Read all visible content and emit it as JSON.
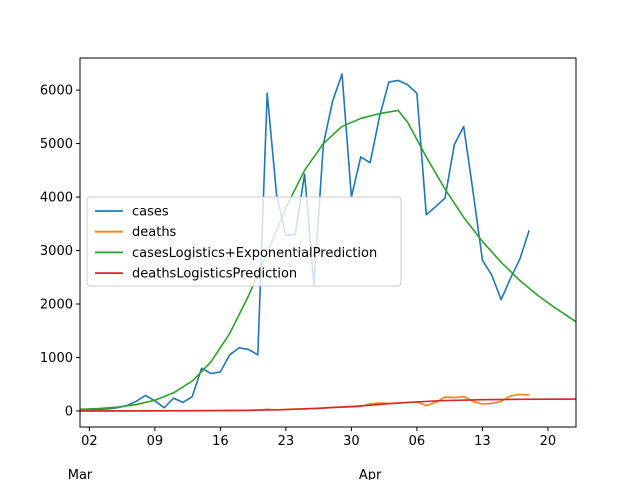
{
  "chart_data": {
    "type": "line",
    "x_axis": {
      "type": "date",
      "range": [
        "2020-03-01",
        "2020-04-23"
      ],
      "tick_labels": [
        {
          "date": "2020-03-02",
          "label": "02"
        },
        {
          "date": "2020-03-09",
          "label": "09"
        },
        {
          "date": "2020-03-16",
          "label": "16"
        },
        {
          "date": "2020-03-23",
          "label": "23"
        },
        {
          "date": "2020-03-30",
          "label": "30"
        },
        {
          "date": "2020-04-06",
          "label": "06"
        },
        {
          "date": "2020-04-13",
          "label": "13"
        },
        {
          "date": "2020-04-20",
          "label": "20"
        }
      ],
      "month_labels": [
        {
          "date": "2020-03-01",
          "label": "Mar"
        },
        {
          "date": "2020-04-01",
          "label": "Apr"
        }
      ]
    },
    "y_axis": {
      "range": [
        -300,
        6600
      ],
      "ticks": [
        0,
        1000,
        2000,
        3000,
        4000,
        5000,
        6000
      ]
    },
    "grid": false,
    "legend": {
      "placement": "center-left"
    },
    "series": [
      {
        "name": "cases",
        "color": "#1f77b4",
        "points": [
          [
            "2020-03-01",
            30
          ],
          [
            "2020-03-02",
            20
          ],
          [
            "2020-03-03",
            30
          ],
          [
            "2020-03-04",
            40
          ],
          [
            "2020-03-05",
            60
          ],
          [
            "2020-03-06",
            100
          ],
          [
            "2020-03-07",
            180
          ],
          [
            "2020-03-08",
            290
          ],
          [
            "2020-03-09",
            190
          ],
          [
            "2020-03-10",
            60
          ],
          [
            "2020-03-11",
            240
          ],
          [
            "2020-03-12",
            160
          ],
          [
            "2020-03-13",
            270
          ],
          [
            "2020-03-14",
            800
          ],
          [
            "2020-03-15",
            700
          ],
          [
            "2020-03-16",
            730
          ],
          [
            "2020-03-17",
            1050
          ],
          [
            "2020-03-18",
            1180
          ],
          [
            "2020-03-19",
            1150
          ],
          [
            "2020-03-20",
            1050
          ],
          [
            "2020-03-21",
            5940
          ],
          [
            "2020-03-22",
            4050
          ],
          [
            "2020-03-23",
            3280
          ],
          [
            "2020-03-24",
            3300
          ],
          [
            "2020-03-25",
            4430
          ],
          [
            "2020-03-26",
            2360
          ],
          [
            "2020-03-27",
            4980
          ],
          [
            "2020-03-28",
            5800
          ],
          [
            "2020-03-29",
            6300
          ],
          [
            "2020-03-30",
            4000
          ],
          [
            "2020-03-31",
            4750
          ],
          [
            "2020-04-01",
            4640
          ],
          [
            "2020-04-02",
            5500
          ],
          [
            "2020-04-03",
            6150
          ],
          [
            "2020-04-04",
            6180
          ],
          [
            "2020-04-05",
            6100
          ],
          [
            "2020-04-06",
            5940
          ],
          [
            "2020-04-07",
            3670
          ],
          [
            "2020-04-08",
            3820
          ],
          [
            "2020-04-09",
            3980
          ],
          [
            "2020-04-10",
            4980
          ],
          [
            "2020-04-11",
            5320
          ],
          [
            "2020-04-12",
            4100
          ],
          [
            "2020-04-13",
            2820
          ],
          [
            "2020-04-14",
            2540
          ],
          [
            "2020-04-15",
            2080
          ],
          [
            "2020-04-16",
            2480
          ],
          [
            "2020-04-17",
            2840
          ],
          [
            "2020-04-18",
            3380
          ]
        ]
      },
      {
        "name": "deaths",
        "color": "#ff7f0e",
        "points": [
          [
            "2020-03-01",
            0
          ],
          [
            "2020-03-03",
            0
          ],
          [
            "2020-03-05",
            1
          ],
          [
            "2020-03-07",
            2
          ],
          [
            "2020-03-09",
            3
          ],
          [
            "2020-03-11",
            4
          ],
          [
            "2020-03-13",
            6
          ],
          [
            "2020-03-15",
            8
          ],
          [
            "2020-03-17",
            10
          ],
          [
            "2020-03-19",
            12
          ],
          [
            "2020-03-20",
            15
          ],
          [
            "2020-03-21",
            30
          ],
          [
            "2020-03-22",
            20
          ],
          [
            "2020-03-23",
            30
          ],
          [
            "2020-03-24",
            35
          ],
          [
            "2020-03-25",
            40
          ],
          [
            "2020-03-26",
            45
          ],
          [
            "2020-03-27",
            55
          ],
          [
            "2020-03-28",
            65
          ],
          [
            "2020-03-29",
            70
          ],
          [
            "2020-03-30",
            75
          ],
          [
            "2020-03-31",
            85
          ],
          [
            "2020-04-01",
            130
          ],
          [
            "2020-04-02",
            150
          ],
          [
            "2020-04-03",
            140
          ],
          [
            "2020-04-04",
            150
          ],
          [
            "2020-04-05",
            160
          ],
          [
            "2020-04-06",
            170
          ],
          [
            "2020-04-07",
            100
          ],
          [
            "2020-04-08",
            160
          ],
          [
            "2020-04-09",
            260
          ],
          [
            "2020-04-10",
            250
          ],
          [
            "2020-04-11",
            270
          ],
          [
            "2020-04-12",
            180
          ],
          [
            "2020-04-13",
            130
          ],
          [
            "2020-04-14",
            140
          ],
          [
            "2020-04-15",
            180
          ],
          [
            "2020-04-16",
            280
          ],
          [
            "2020-04-17",
            310
          ],
          [
            "2020-04-18",
            300
          ]
        ]
      },
      {
        "name": "casesLogistics+ExponentialPrediction",
        "color": "#2ca02c",
        "points": [
          [
            "2020-03-01",
            30
          ],
          [
            "2020-03-03",
            45
          ],
          [
            "2020-03-05",
            70
          ],
          [
            "2020-03-07",
            120
          ],
          [
            "2020-03-09",
            200
          ],
          [
            "2020-03-11",
            340
          ],
          [
            "2020-03-13",
            560
          ],
          [
            "2020-03-15",
            920
          ],
          [
            "2020-03-17",
            1450
          ],
          [
            "2020-03-19",
            2150
          ],
          [
            "2020-03-21",
            2950
          ],
          [
            "2020-03-23",
            3800
          ],
          [
            "2020-03-25",
            4500
          ],
          [
            "2020-03-27",
            5000
          ],
          [
            "2020-03-29",
            5320
          ],
          [
            "2020-03-31",
            5470
          ],
          [
            "2020-04-02",
            5560
          ],
          [
            "2020-04-04",
            5620
          ],
          [
            "2020-04-05",
            5400
          ],
          [
            "2020-04-07",
            4750
          ],
          [
            "2020-04-09",
            4150
          ],
          [
            "2020-04-11",
            3620
          ],
          [
            "2020-04-13",
            3170
          ],
          [
            "2020-04-15",
            2780
          ],
          [
            "2020-04-17",
            2440
          ],
          [
            "2020-04-19",
            2150
          ],
          [
            "2020-04-21",
            1900
          ],
          [
            "2020-04-23",
            1670
          ]
        ]
      },
      {
        "name": "deathsLogisticsPrediction",
        "color": "#d62728",
        "points": [
          [
            "2020-03-01",
            0
          ],
          [
            "2020-03-09",
            2
          ],
          [
            "2020-03-15",
            5
          ],
          [
            "2020-03-19",
            12
          ],
          [
            "2020-03-23",
            25
          ],
          [
            "2020-03-27",
            55
          ],
          [
            "2020-03-31",
            95
          ],
          [
            "2020-04-03",
            135
          ],
          [
            "2020-04-06",
            170
          ],
          [
            "2020-04-09",
            195
          ],
          [
            "2020-04-13",
            210
          ],
          [
            "2020-04-17",
            218
          ],
          [
            "2020-04-23",
            222
          ]
        ]
      }
    ]
  }
}
